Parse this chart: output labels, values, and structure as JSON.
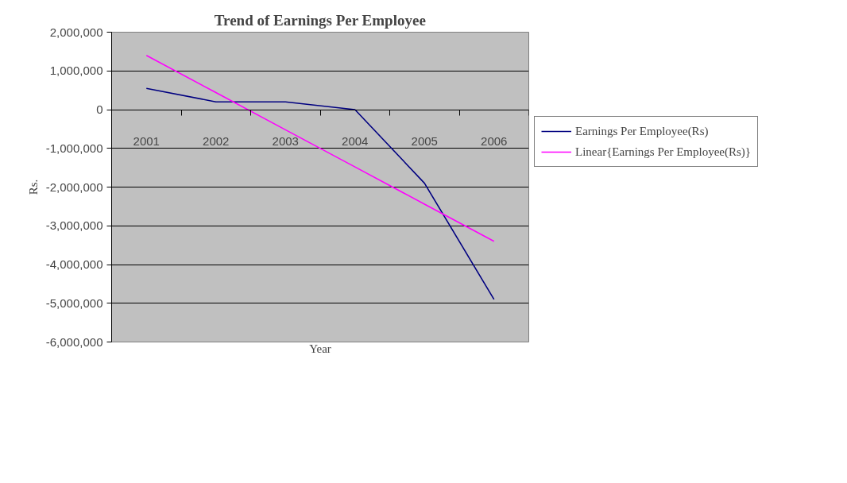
{
  "chart_data": {
    "type": "line",
    "title": "Trend of Earnings Per Employee",
    "xlabel": "Year",
    "ylabel": "Rs.",
    "categories": [
      "2001",
      "2002",
      "2003",
      "2004",
      "2005",
      "2006"
    ],
    "series": [
      {
        "name": "Earnings Per Employee(Rs)",
        "color": "#000080",
        "values": [
          550000,
          200000,
          200000,
          0,
          -1900000,
          -4900000
        ]
      },
      {
        "name": "Linear{Earnings Per Employee(Rs)}",
        "color": "#ff00ff",
        "values": [
          1400000,
          440000,
          -520000,
          -1480000,
          -2440000,
          -3400000
        ]
      }
    ],
    "ylim": [
      -6000000,
      2000000
    ],
    "yticks": [
      {
        "value": -6000000,
        "label": "-6,000,000"
      },
      {
        "value": -5000000,
        "label": "-5,000,000"
      },
      {
        "value": -4000000,
        "label": "-4,000,000"
      },
      {
        "value": -3000000,
        "label": "-3,000,000"
      },
      {
        "value": -2000000,
        "label": "-2,000,000"
      },
      {
        "value": -1000000,
        "label": "-1,000,000"
      },
      0,
      {
        "value": 1000000,
        "label": "1,000,000"
      },
      {
        "value": 2000000,
        "label": "2,000,000"
      }
    ],
    "grid": "y",
    "legend": "right",
    "marker": "none",
    "line_style": "solid"
  }
}
